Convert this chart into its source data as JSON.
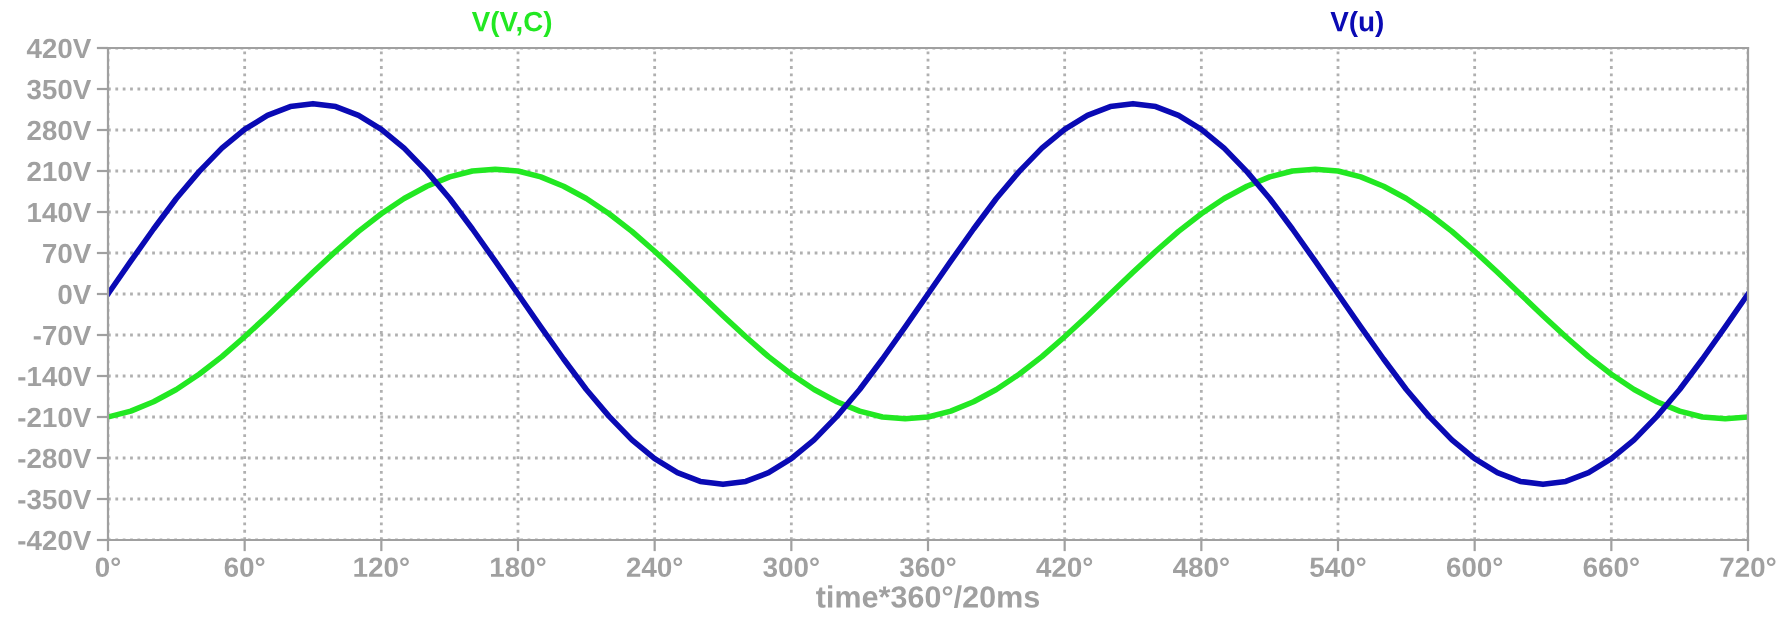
{
  "chart_data": {
    "type": "line",
    "xlabel": "time*360°/20ms",
    "x": [
      0,
      10,
      20,
      30,
      40,
      50,
      60,
      70,
      80,
      90,
      100,
      110,
      120,
      130,
      140,
      150,
      160,
      170,
      180,
      190,
      200,
      210,
      220,
      230,
      240,
      250,
      260,
      270,
      280,
      290,
      300,
      310,
      320,
      330,
      340,
      350,
      360,
      370,
      380,
      390,
      400,
      410,
      420,
      430,
      440,
      450,
      460,
      470,
      480,
      490,
      500,
      510,
      520,
      530,
      540,
      550,
      560,
      570,
      580,
      590,
      600,
      610,
      620,
      630,
      640,
      650,
      660,
      670,
      680,
      690,
      700,
      710,
      720
    ],
    "series": [
      {
        "name": "V(V,C)",
        "color": "#22e822",
        "values": [
          -210,
          -200,
          -184,
          -163,
          -137,
          -107,
          -73,
          -37,
          0,
          37,
          73,
          107,
          137,
          163,
          184,
          200,
          210,
          213,
          210,
          200,
          184,
          163,
          137,
          107,
          73,
          37,
          0,
          -37,
          -73,
          -107,
          -137,
          -163,
          -184,
          -200,
          -210,
          -213,
          -210,
          -200,
          -184,
          -163,
          -137,
          -107,
          -73,
          -37,
          0,
          37,
          73,
          107,
          137,
          163,
          184,
          200,
          210,
          213,
          210,
          200,
          184,
          163,
          137,
          107,
          73,
          37,
          0,
          -37,
          -73,
          -107,
          -137,
          -163,
          -184,
          -200,
          -210,
          -213,
          -210
        ]
      },
      {
        "name": "V(u)",
        "color": "#0a0ab4",
        "values": [
          0,
          56,
          111,
          163,
          209,
          249,
          281,
          305,
          320,
          325,
          320,
          305,
          281,
          249,
          209,
          163,
          111,
          56,
          0,
          -56,
          -111,
          -163,
          -209,
          -249,
          -281,
          -305,
          -320,
          -325,
          -320,
          -305,
          -281,
          -249,
          -209,
          -163,
          -111,
          -56,
          0,
          56,
          111,
          163,
          209,
          249,
          281,
          305,
          320,
          325,
          320,
          305,
          281,
          249,
          209,
          163,
          111,
          56,
          0,
          -56,
          -111,
          -163,
          -209,
          -249,
          -281,
          -305,
          -320,
          -325,
          -320,
          -305,
          -281,
          -249,
          -209,
          -163,
          -111,
          -56,
          0
        ]
      }
    ],
    "xlim": [
      0,
      720
    ],
    "xticks": [
      {
        "value": 0,
        "label": "0°"
      },
      {
        "value": 60,
        "label": "60°"
      },
      {
        "value": 120,
        "label": "120°"
      },
      {
        "value": 180,
        "label": "180°"
      },
      {
        "value": 240,
        "label": "240°"
      },
      {
        "value": 300,
        "label": "300°"
      },
      {
        "value": 360,
        "label": "360°"
      },
      {
        "value": 420,
        "label": "420°"
      },
      {
        "value": 480,
        "label": "480°"
      },
      {
        "value": 540,
        "label": "540°"
      },
      {
        "value": 600,
        "label": "600°"
      },
      {
        "value": 660,
        "label": "660°"
      },
      {
        "value": 720,
        "label": "720°"
      }
    ],
    "ylim": [
      -420,
      420
    ],
    "yticks": [
      {
        "value": -420,
        "label": "-420V"
      },
      {
        "value": -350,
        "label": "-350V"
      },
      {
        "value": -280,
        "label": "-280V"
      },
      {
        "value": -210,
        "label": "-210V"
      },
      {
        "value": -140,
        "label": "-140V"
      },
      {
        "value": -70,
        "label": "-70V"
      },
      {
        "value": 0,
        "label": "0V"
      },
      {
        "value": 70,
        "label": "70V"
      },
      {
        "value": 140,
        "label": "140V"
      },
      {
        "value": 210,
        "label": "210V"
      },
      {
        "value": 280,
        "label": "280V"
      },
      {
        "value": 350,
        "label": "350V"
      },
      {
        "value": 420,
        "label": "420V"
      }
    ],
    "grid": true,
    "legend": "top",
    "marker": "none",
    "line_style": "solid"
  }
}
